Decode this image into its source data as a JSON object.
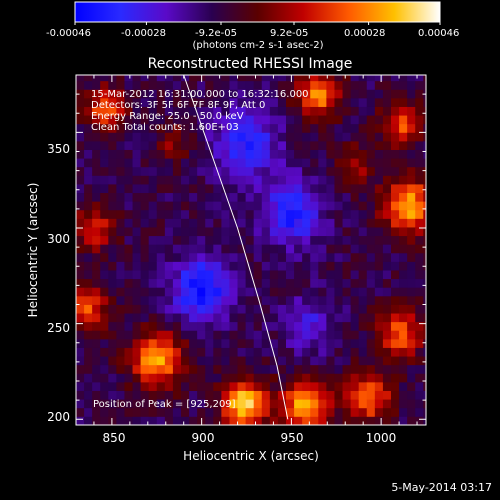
{
  "colors": {
    "background": "#000000",
    "text": "#ffffff",
    "colormap_stops": [
      "#0000ff",
      "#2a2aff",
      "#5a0ac8",
      "#2a0050",
      "#5a0000",
      "#c00000",
      "#ff5a00",
      "#ffc000",
      "#ffffff"
    ]
  },
  "colorbar": {
    "min": -0.00046,
    "max": 0.00046,
    "tick_labels": [
      "-0.00046",
      "-0.00028",
      "-9.2e-05",
      "9.2e-05",
      "0.00028",
      "0.00046"
    ],
    "units": "(photons cm-2 s-1 asec-2)"
  },
  "info": {
    "line1": "15-Mar-2012 16:31:00.000 to 16:32:16.000",
    "line2": "Detectors: 3F 5F 6F 7F 8F 9F, Att 0",
    "line3": "Energy Range: 25.0 - 50.0 keV",
    "line4": "Clean    Total counts: 1.60E+03",
    "peak": "Position of Peak = [925,209]"
  },
  "footer": "5-May-2014 03:17",
  "chart_data": {
    "type": "heatmap",
    "title": "Reconstructed RHESSI Image",
    "xlabel": "Heliocentric X (arcsec)",
    "ylabel": "Heliocentric Y (arcsec)",
    "xlim": [
      830,
      1025
    ],
    "ylim": [
      197,
      380
    ],
    "x_ticks": [
      850,
      900,
      950,
      1000
    ],
    "y_ticks": [
      200,
      250,
      300,
      350
    ],
    "x_tick_labels": [
      "850",
      "900",
      "950",
      "1000"
    ],
    "y_tick_labels": [
      "200",
      "250",
      "300",
      "350"
    ],
    "value_range": [
      -0.00046,
      0.00046
    ],
    "background_value": -0.0001,
    "grid_step": 4.5,
    "sources": [
      {
        "x": 924,
        "y": 208,
        "amp": 0.00048,
        "sigma": 9
      },
      {
        "x": 958,
        "y": 207,
        "amp": 0.00045,
        "sigma": 9
      },
      {
        "x": 875,
        "y": 232,
        "amp": 0.00042,
        "sigma": 10
      },
      {
        "x": 836,
        "y": 258,
        "amp": 0.00032,
        "sigma": 8
      },
      {
        "x": 1015,
        "y": 312,
        "amp": 0.00042,
        "sigma": 10
      },
      {
        "x": 1010,
        "y": 245,
        "amp": 0.00032,
        "sigma": 9
      },
      {
        "x": 993,
        "y": 212,
        "amp": 0.00036,
        "sigma": 9
      },
      {
        "x": 965,
        "y": 370,
        "amp": 0.00036,
        "sigma": 9
      },
      {
        "x": 847,
        "y": 362,
        "amp": 0.00032,
        "sigma": 8
      },
      {
        "x": 840,
        "y": 300,
        "amp": 0.00026,
        "sigma": 8
      },
      {
        "x": 1012,
        "y": 355,
        "amp": 0.0003,
        "sigma": 8
      },
      {
        "x": 985,
        "y": 333,
        "amp": 0.0002,
        "sigma": 7
      },
      {
        "x": 885,
        "y": 345,
        "amp": 0.00015,
        "sigma": 7
      },
      {
        "x": 900,
        "y": 268,
        "amp": -0.00032,
        "sigma": 12
      },
      {
        "x": 950,
        "y": 308,
        "amp": -0.00028,
        "sigma": 12
      },
      {
        "x": 925,
        "y": 345,
        "amp": -0.00025,
        "sigma": 13
      },
      {
        "x": 960,
        "y": 250,
        "amp": -0.00018,
        "sigma": 10
      }
    ],
    "limb": [
      [
        890,
        380
      ],
      [
        905,
        340
      ],
      [
        920,
        300
      ],
      [
        932,
        262
      ],
      [
        942,
        228
      ],
      [
        948,
        200
      ]
    ]
  }
}
